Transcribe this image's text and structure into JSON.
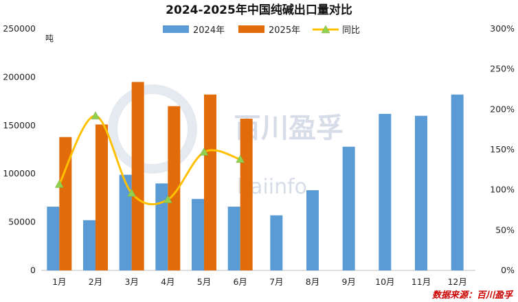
{
  "chart_data": {
    "type": "bar",
    "title": "2024-2025年中国纯碱出口量对比",
    "y_unit": "吨",
    "categories": [
      "1月",
      "2月",
      "3月",
      "4月",
      "5月",
      "6月",
      "7月",
      "8月",
      "9月",
      "10月",
      "11月",
      "12月"
    ],
    "series": [
      {
        "name": "2024年",
        "type": "bar",
        "axis": "left",
        "color": "#5b9bd5",
        "values": [
          66000,
          52000,
          99000,
          90000,
          74000,
          66000,
          57000,
          83000,
          128000,
          162000,
          160000,
          182000
        ]
      },
      {
        "name": "2025年",
        "type": "bar",
        "axis": "left",
        "color": "#e36c0a",
        "values": [
          138000,
          151000,
          195000,
          170000,
          182000,
          157000,
          null,
          null,
          null,
          null,
          null,
          null
        ]
      },
      {
        "name": "同比",
        "type": "line",
        "axis": "right",
        "color": "#ffc000",
        "marker_color": "#92d050",
        "values": [
          107,
          192,
          96,
          88,
          147,
          138,
          null,
          null,
          null,
          null,
          null,
          null
        ]
      }
    ],
    "ylim_left": [
      0,
      250000
    ],
    "ylim_right": [
      0,
      300
    ],
    "yticks_left": [
      "0",
      "50000",
      "100000",
      "150000",
      "200000",
      "250000"
    ],
    "yticks_right": [
      "0%",
      "50%",
      "100%",
      "150%",
      "200%",
      "250%",
      "300%"
    ],
    "legend_position": "top",
    "grid": false
  },
  "watermark": {
    "cn": "百川盈孚",
    "en": "baiinfo"
  },
  "source_note": "数据来源：百川盈孚"
}
